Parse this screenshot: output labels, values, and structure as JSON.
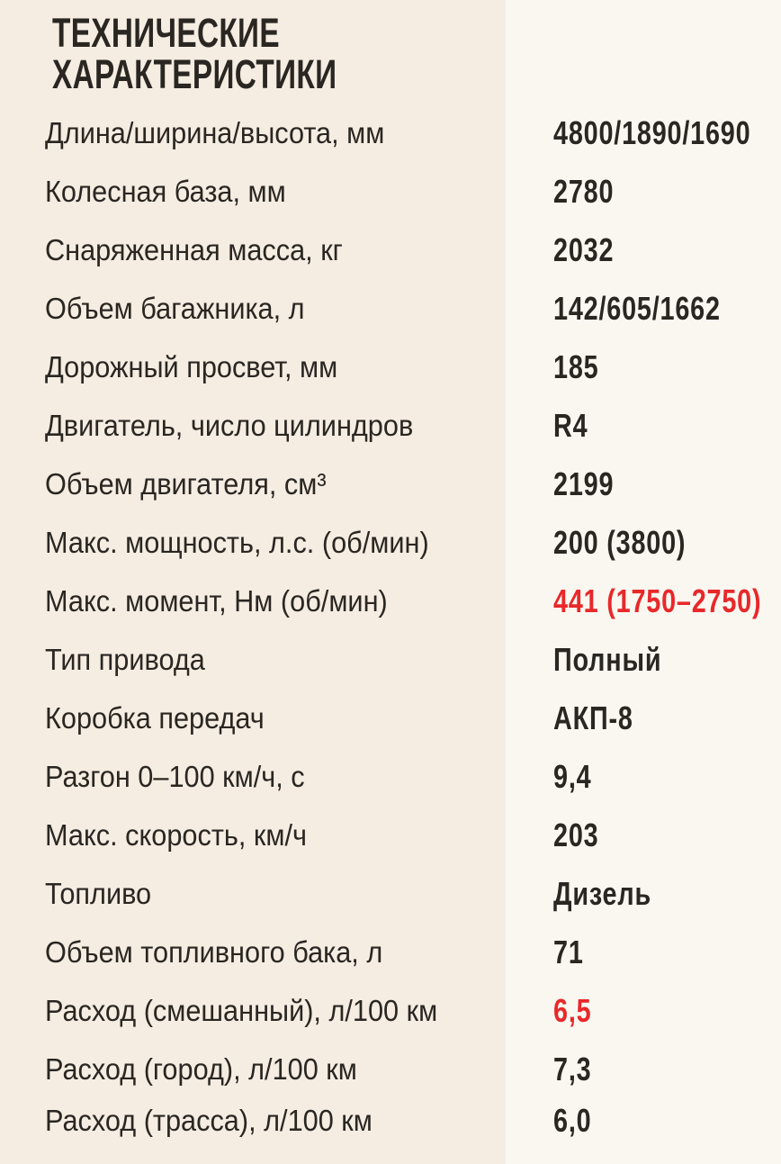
{
  "title": {
    "line1": "ТЕХНИЧЕСКИЕ",
    "line2": "ХАРАКТЕРИСТИКИ"
  },
  "colors": {
    "highlight": "#e8282a",
    "text": "#2a2622",
    "background_left": "#f5ede2",
    "background_right": "#faf7f1"
  },
  "specs": [
    {
      "label": "Длина/ширина/высота, мм",
      "value": "4800/1890/1690",
      "highlight": false
    },
    {
      "label": "Колесная база, мм",
      "value": "2780",
      "highlight": false
    },
    {
      "label": "Снаряженная масса, кг",
      "value": "2032",
      "highlight": false
    },
    {
      "label": "Объем багажника, л",
      "value": "142/605/1662",
      "highlight": false
    },
    {
      "label": "Дорожный просвет, мм",
      "value": "185",
      "highlight": false
    },
    {
      "label": "Двигатель, число цилиндров",
      "value": "R4",
      "highlight": false
    },
    {
      "label": "Объем двигателя, см³",
      "value": "2199",
      "highlight": false
    },
    {
      "label": "Макс. мощность, л.с. (об/мин)",
      "value": "200 (3800)",
      "highlight": false
    },
    {
      "label": "Макс. момент, Нм (об/мин)",
      "value": "441 (1750–2750)",
      "highlight": true
    },
    {
      "label": "Тип привода",
      "value": "Полный",
      "highlight": false
    },
    {
      "label": "Коробка передач",
      "value": "АКП-8",
      "highlight": false
    },
    {
      "label": "Разгон 0–100 км/ч, с",
      "value": "9,4",
      "highlight": false
    },
    {
      "label": "Макс. скорость, км/ч",
      "value": "203",
      "highlight": false
    },
    {
      "label": "Топливо",
      "value": "Дизель",
      "highlight": false
    },
    {
      "label": "Объем топливного бака, л",
      "value": "71",
      "highlight": false
    },
    {
      "label": "Расход (смешанный), л/100 км",
      "value": "6,5",
      "highlight": true
    },
    {
      "label": "Расход (город), л/100 км",
      "value": "7,3",
      "highlight": false
    },
    {
      "label": "Расход (трасса), л/100 км",
      "value": "6,0",
      "highlight": false
    }
  ]
}
